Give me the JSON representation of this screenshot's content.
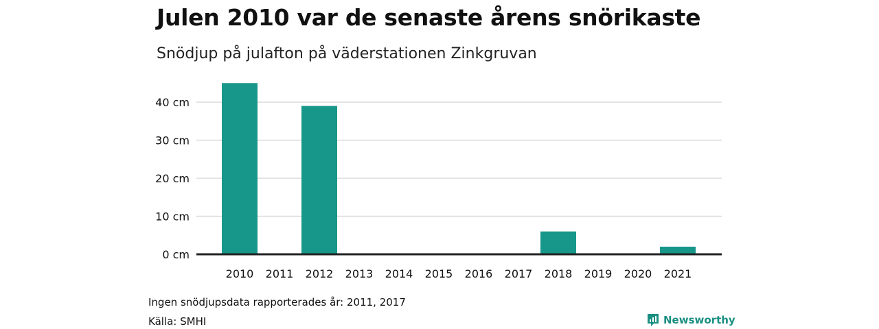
{
  "title": "Julen 2010 var de senaste årens snörikaste",
  "subtitle": "Snödjup på julafton på väderstationen Zinkgruvan",
  "note": "Ingen snödjupsdata rapporterades år: 2011, 2017",
  "source": "Källa: SMHI",
  "brand": {
    "name": "Newsworthy",
    "icon": "newsworthy-logo-icon",
    "color": "#1a8f82"
  },
  "chart_data": {
    "type": "bar",
    "categories": [
      "2010",
      "2011",
      "2012",
      "2013",
      "2014",
      "2015",
      "2016",
      "2017",
      "2018",
      "2019",
      "2020",
      "2021"
    ],
    "values": [
      45,
      null,
      39,
      0,
      0,
      0,
      0,
      null,
      6,
      0,
      0,
      2
    ],
    "y_ticks": [
      0,
      10,
      20,
      30,
      40
    ],
    "y_tick_labels": [
      "0 cm",
      "10 cm",
      "20 cm",
      "30 cm",
      "40 cm"
    ],
    "ylim": [
      0,
      47
    ],
    "grid": true,
    "legend": "none",
    "bar_color": "#17978a",
    "xlabel": "",
    "ylabel": ""
  }
}
